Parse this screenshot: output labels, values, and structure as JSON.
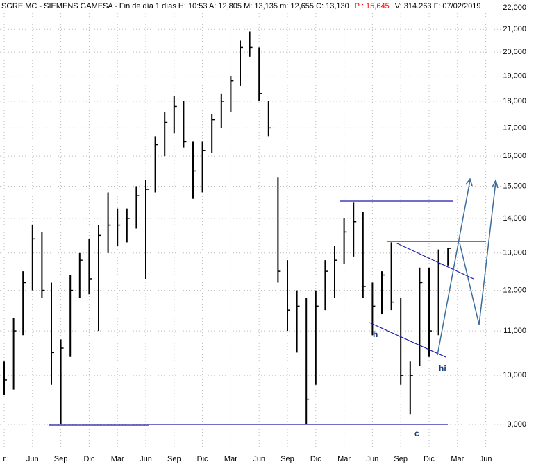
{
  "chart_data": {
    "type": "hlc",
    "header": [
      {
        "text": "SGRE.MC - SIEMENS GAMESA - Fin de día 1 días  H: 10:53  A: 12,805  M: 13,135  m: 12,655  C: 13,130",
        "color": "#000000"
      },
      {
        "text": "P : 15,645",
        "color": "#ff0000"
      },
      {
        "text": "V: 314.263  F: 07/02/2019",
        "color": "#000000"
      }
    ],
    "categories": [
      "r",
      null,
      null,
      "Jun",
      null,
      null,
      "Sep",
      null,
      null,
      "Dic",
      null,
      null,
      "Mar",
      null,
      null,
      "Jun",
      null,
      null,
      "Sep",
      null,
      null,
      "Dic",
      null,
      null,
      "Mar",
      null,
      null,
      "Jun",
      null,
      null,
      "Sep",
      null,
      null,
      "Dic",
      null,
      null,
      "Mar",
      null,
      null,
      "Jun",
      null,
      null,
      "Sep",
      null,
      null,
      "Dic",
      null,
      null,
      "Mar",
      null,
      null,
      "Jun"
    ],
    "high": [
      10300,
      11300,
      12500,
      13800,
      13600,
      12200,
      10800,
      12400,
      13000,
      13400,
      13800,
      14800,
      14300,
      14300,
      15000,
      15200,
      16700,
      17600,
      18200,
      18000,
      16500,
      16500,
      17500,
      18300,
      19000,
      20500,
      20900,
      20200,
      18000,
      15300,
      12800,
      12000,
      11800,
      12000,
      12800,
      13200,
      14000,
      14500,
      14200,
      12200,
      12500,
      13300,
      11800,
      10300,
      12600,
      12600,
      13100,
      13135,
      null,
      null,
      null,
      null
    ],
    "low": [
      9580,
      9700,
      10900,
      12000,
      11800,
      9800,
      9000,
      10400,
      11800,
      11900,
      11000,
      13000,
      13200,
      13300,
      13700,
      12300,
      14800,
      16000,
      16800,
      16300,
      14600,
      14800,
      16100,
      17000,
      17600,
      18600,
      19800,
      18000,
      16700,
      12200,
      11000,
      10500,
      9000,
      9800,
      11500,
      11800,
      12700,
      12900,
      11800,
      10900,
      11400,
      11500,
      9800,
      9200,
      10200,
      10400,
      10900,
      12655,
      null,
      null,
      null,
      null
    ],
    "close": [
      9900,
      11000,
      12200,
      13400,
      12000,
      10500,
      10600,
      12000,
      12800,
      12300,
      13500,
      13800,
      13800,
      14000,
      14700,
      14900,
      16400,
      17200,
      17800,
      16500,
      15500,
      16200,
      17300,
      18000,
      18800,
      20200,
      20200,
      18300,
      17000,
      12500,
      11500,
      11600,
      9500,
      11600,
      12500,
      12800,
      13600,
      13900,
      12100,
      11600,
      12400,
      11700,
      10000,
      10000,
      12200,
      11000,
      12700,
      13130,
      null,
      null,
      null,
      null
    ],
    "color": "#000000",
    "log_scale": true,
    "ylim": [
      9000,
      22000
    ],
    "yticks": [
      {
        "value": 9000,
        "label": "9,000"
      },
      {
        "value": 10000,
        "label": "10,000"
      },
      {
        "value": 11000,
        "label": "11,000"
      },
      {
        "value": 12000,
        "label": "12,000"
      },
      {
        "value": 13000,
        "label": "13,000"
      },
      {
        "value": 14000,
        "label": "14,000"
      },
      {
        "value": 15000,
        "label": "15,000"
      },
      {
        "value": 16000,
        "label": "16,000"
      },
      {
        "value": 17000,
        "label": "17,000"
      },
      {
        "value": 18000,
        "label": "18,000"
      },
      {
        "value": 19000,
        "label": "19,000"
      },
      {
        "value": 20000,
        "label": "20,000"
      },
      {
        "value": 21000,
        "label": "21,000"
      },
      {
        "value": 22000,
        "label": "22,000"
      }
    ],
    "grid": true,
    "annotations": [
      "h",
      "hi",
      "c"
    ]
  }
}
